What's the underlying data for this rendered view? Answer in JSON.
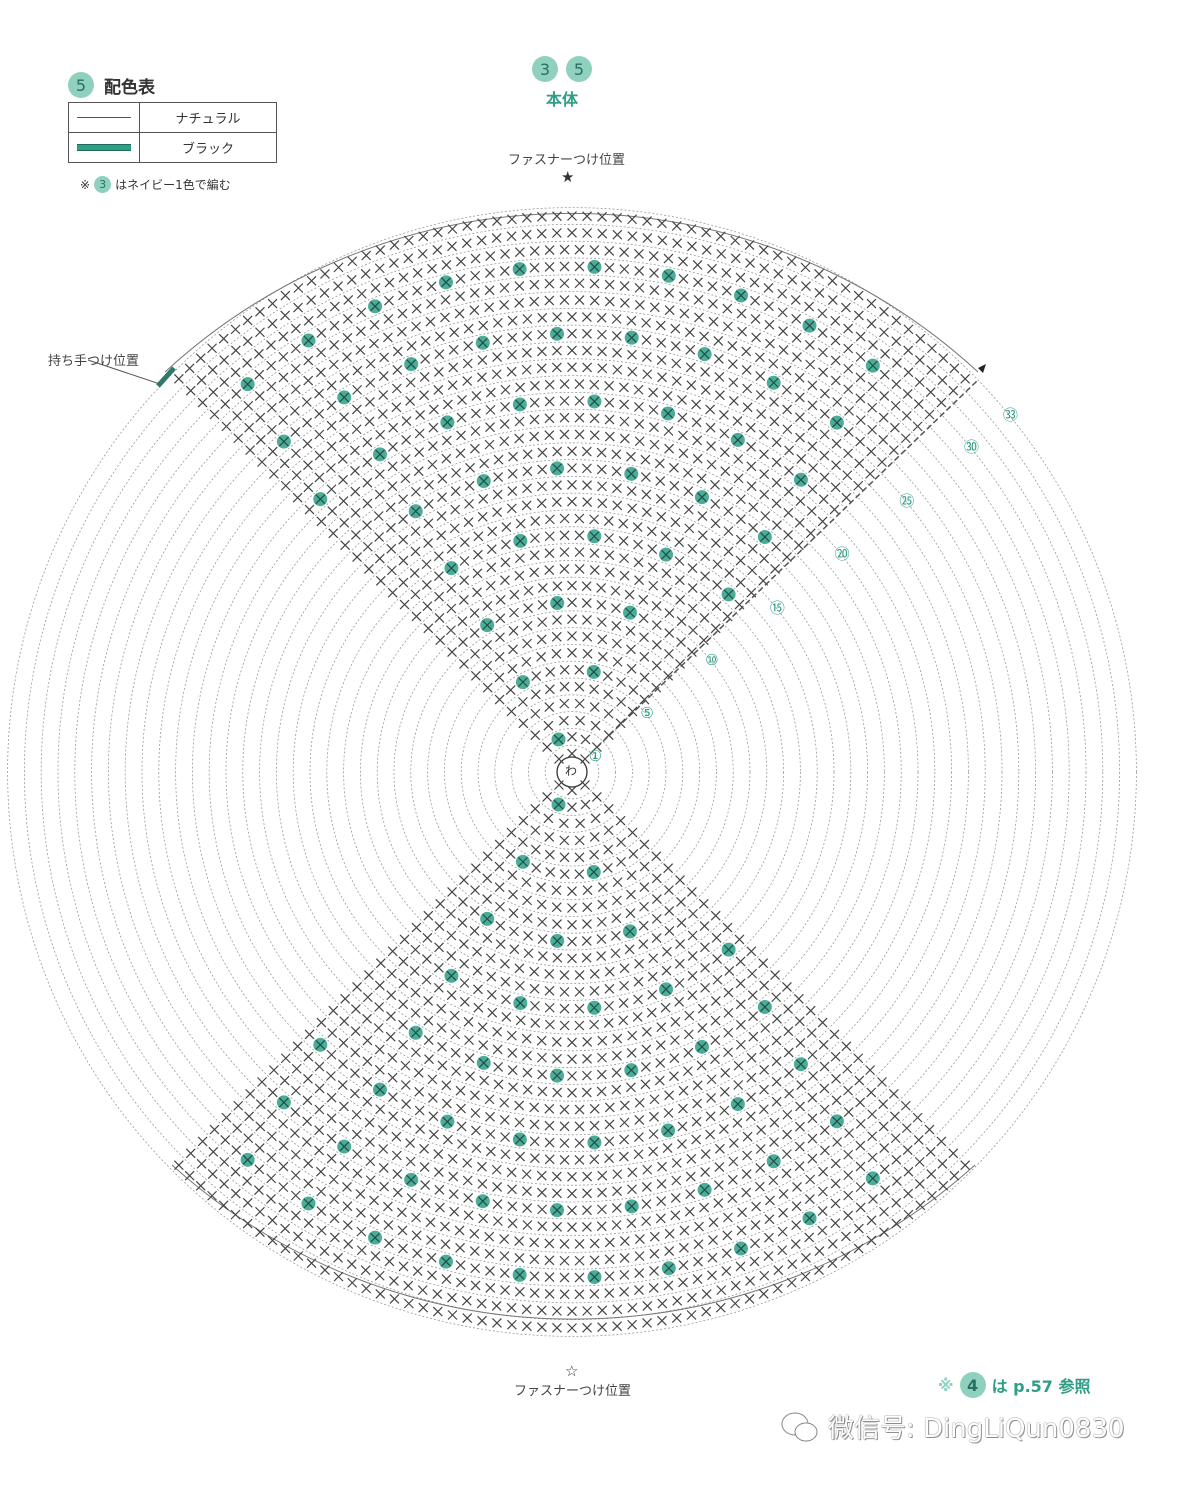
{
  "legend": {
    "badge": "5",
    "title": "配色表",
    "rows": [
      {
        "line": "thin",
        "color_name": "ナチュラル"
      },
      {
        "line": "thick",
        "color_name": "ブラック"
      }
    ],
    "note_prefix": "※",
    "note_badge": "3",
    "note_text": "はネイビー1色で編む"
  },
  "header": {
    "badges": [
      "3",
      "5"
    ],
    "title": "本体"
  },
  "annotations": {
    "zipper_top": "ファスナーつけ位置",
    "zipper_bottom": "ファスナーつけ位置",
    "handle": "持ち手つけ位置",
    "center_ring": "わ",
    "star_filled": "★",
    "star_open": "☆"
  },
  "row_labels": [
    "①",
    "⑤",
    "⑩",
    "⑮",
    "⑳",
    "㉕",
    "㉚",
    "㉝"
  ],
  "footer_note": {
    "prefix": "※",
    "badge": "4",
    "text": "は p.57 参照"
  },
  "watermark": "微信号: DingLiQun0830",
  "colors": {
    "accent": "#2e9e86",
    "badge_bg": "#8fd0bf",
    "badge_text": "#2a6f63",
    "stitch": "#444444",
    "ring": "#9a9a9a"
  }
}
